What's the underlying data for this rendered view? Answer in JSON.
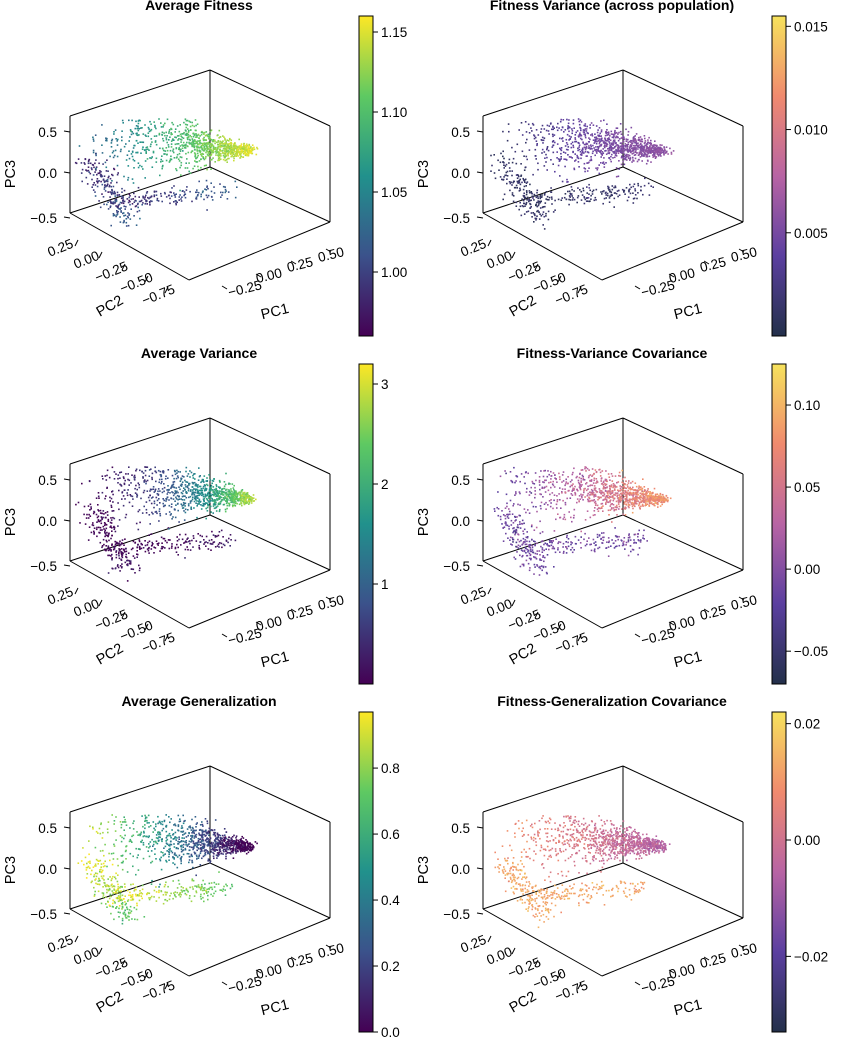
{
  "chart_data": [
    {
      "type": "scatter3d",
      "title": "Average Fitness",
      "xlabel": "PC1",
      "ylabel": "PC2",
      "zlabel": "PC3",
      "pc1_ticks": [
        "−0.25",
        "0.00",
        "0.25",
        "0.50"
      ],
      "pc2_ticks": [
        "0.25",
        "0.00",
        "−0.25",
        "−0.50",
        "−0.75"
      ],
      "pc3_ticks": [
        "0.5",
        "0.0",
        "−0.5"
      ],
      "colormap": "viridis",
      "colors": [
        "#440154",
        "#3b528b",
        "#21918c",
        "#5ec962",
        "#fde725"
      ],
      "colorbar": {
        "min": 0.96,
        "max": 1.16,
        "ticks": [
          "1.15",
          "1.10",
          "1.05",
          "1.00"
        ],
        "tick_values": [
          1.15,
          1.1,
          1.05,
          1.0
        ]
      },
      "color_trend": {
        "high_region": "positive PC1 tip",
        "low_region": "negative PC1 / lower branch"
      }
    },
    {
      "type": "scatter3d",
      "title": "Fitness Variance (across population)",
      "xlabel": "PC1",
      "ylabel": "PC2",
      "zlabel": "PC3",
      "pc1_ticks": [
        "−0.25",
        "0.00",
        "0.25",
        "0.50"
      ],
      "pc2_ticks": [
        "0.25",
        "0.00",
        "−0.25",
        "−0.50",
        "−0.75"
      ],
      "pc3_ticks": [
        "0.5",
        "0.0",
        "−0.5"
      ],
      "colormap": "plasma-like",
      "colors": [
        "#23304a",
        "#5b3fa0",
        "#b864a4",
        "#f08a6e",
        "#f6e25c"
      ],
      "colorbar": {
        "min": 0.0,
        "max": 0.0155,
        "ticks": [
          "0.015",
          "0.010",
          "0.005"
        ],
        "tick_values": [
          0.015,
          0.01,
          0.005
        ]
      },
      "color_trend": {
        "high_region": "central cloud",
        "low_region": "negative PC1 / lower branch"
      }
    },
    {
      "type": "scatter3d",
      "title": "Average Variance",
      "xlabel": "PC1",
      "ylabel": "PC2",
      "zlabel": "PC3",
      "pc1_ticks": [
        "−0.25",
        "0.00",
        "0.25",
        "0.50"
      ],
      "pc2_ticks": [
        "0.25",
        "0.00",
        "−0.25",
        "−0.50",
        "−0.75"
      ],
      "pc3_ticks": [
        "0.5",
        "0.0",
        "−0.5"
      ],
      "colormap": "viridis",
      "colors": [
        "#440154",
        "#3b528b",
        "#21918c",
        "#5ec962",
        "#fde725"
      ],
      "colorbar": {
        "min": 0.0,
        "max": 3.2,
        "ticks": [
          "3",
          "2",
          "1"
        ],
        "tick_values": [
          3,
          2,
          1
        ]
      },
      "color_trend": {
        "high_region": "positive PC1 tip",
        "low_region": "negative PC1 / lower branch"
      }
    },
    {
      "type": "scatter3d",
      "title": "Fitness-Variance Covariance",
      "xlabel": "PC1",
      "ylabel": "PC2",
      "zlabel": "PC3",
      "pc1_ticks": [
        "−0.25",
        "0.00",
        "0.25",
        "0.50"
      ],
      "pc2_ticks": [
        "0.25",
        "0.00",
        "−0.25",
        "−0.50",
        "−0.75"
      ],
      "pc3_ticks": [
        "0.5",
        "0.0",
        "−0.5"
      ],
      "colormap": "plasma-like",
      "colors": [
        "#23304a",
        "#5b3fa0",
        "#b864a4",
        "#f08a6e",
        "#f6e25c"
      ],
      "colorbar": {
        "min": -0.07,
        "max": 0.125,
        "ticks": [
          "0.10",
          "0.05",
          "0.00",
          "−0.05"
        ],
        "tick_values": [
          0.1,
          0.05,
          0.0,
          -0.05
        ]
      },
      "color_trend": {
        "high_region": "central cloud",
        "low_region": "edges"
      }
    },
    {
      "type": "scatter3d",
      "title": "Average Generalization",
      "xlabel": "PC1",
      "ylabel": "PC2",
      "zlabel": "PC3",
      "pc1_ticks": [
        "−0.25",
        "0.00",
        "0.25",
        "0.50"
      ],
      "pc2_ticks": [
        "0.25",
        "0.00",
        "−0.25",
        "−0.50",
        "−0.75"
      ],
      "pc3_ticks": [
        "0.5",
        "0.0",
        "−0.5"
      ],
      "colormap": "viridis",
      "colors": [
        "#440154",
        "#3b528b",
        "#21918c",
        "#5ec962",
        "#fde725"
      ],
      "colorbar": {
        "min": 0.0,
        "max": 0.97,
        "ticks": [
          "0.8",
          "0.6",
          "0.4",
          "0.2",
          "0.0"
        ],
        "tick_values": [
          0.8,
          0.6,
          0.4,
          0.2,
          0.0
        ]
      },
      "color_trend": {
        "high_region": "negative PC1 / lower branch",
        "low_region": "positive PC1 tip"
      }
    },
    {
      "type": "scatter3d",
      "title": "Fitness-Generalization Covariance",
      "xlabel": "PC1",
      "ylabel": "PC2",
      "zlabel": "PC3",
      "pc1_ticks": [
        "−0.25",
        "0.00",
        "0.25",
        "0.50"
      ],
      "pc2_ticks": [
        "0.25",
        "0.00",
        "−0.25",
        "−0.50",
        "−0.75"
      ],
      "pc3_ticks": [
        "0.5",
        "0.0",
        "−0.5"
      ],
      "colormap": "plasma-like",
      "colors": [
        "#23304a",
        "#5b3fa0",
        "#b864a4",
        "#f08a6e",
        "#f6e25c"
      ],
      "colorbar": {
        "min": -0.033,
        "max": 0.022,
        "ticks": [
          "0.02",
          "0.00",
          "−0.02"
        ],
        "tick_values": [
          0.02,
          0.0,
          -0.02
        ]
      },
      "color_trend": {
        "high_region": "negative PC1 / lower branch",
        "low_region": "central cloud"
      }
    }
  ]
}
